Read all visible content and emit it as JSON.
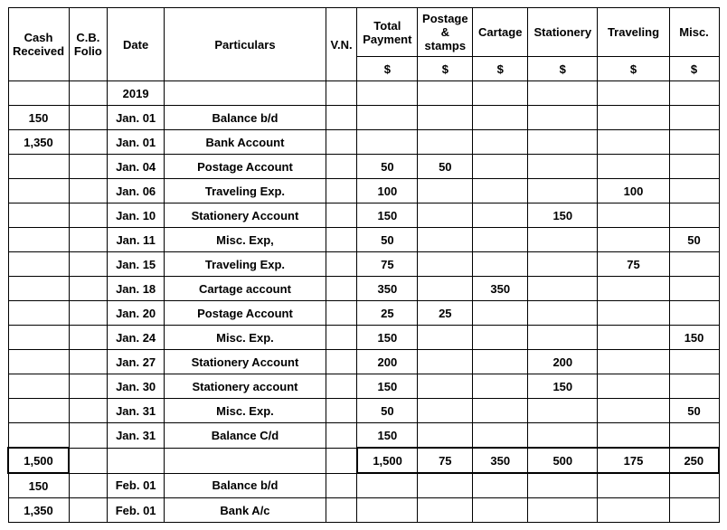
{
  "header": {
    "cash_received": "Cash Received",
    "cb_folio": "C.B. Folio",
    "date": "Date",
    "particulars": "Particulars",
    "vn": "V.N.",
    "total_payment": "Total Payment",
    "postage": "Postage & stamps",
    "cartage": "Cartage",
    "stationery": "Stationery",
    "traveling": "Traveling",
    "misc": "Misc.",
    "currency": "$"
  },
  "year_row": {
    "date": "2019"
  },
  "rows": [
    {
      "cash": "150",
      "date": "Jan. 01",
      "part": "Balance b/d"
    },
    {
      "cash": "1,350",
      "date": "Jan. 01",
      "part": "Bank Account"
    },
    {
      "date": "Jan. 04",
      "part": "Postage Account",
      "total": "50",
      "postage": "50"
    },
    {
      "date": "Jan. 06",
      "part": "Traveling Exp.",
      "total": "100",
      "traveling": "100"
    },
    {
      "date": "Jan. 10",
      "part": "Stationery Account",
      "total": "150",
      "stationery": "150"
    },
    {
      "date": "Jan. 11",
      "part": "Misc. Exp,",
      "total": "50",
      "misc": "50"
    },
    {
      "date": "Jan. 15",
      "part": "Traveling Exp.",
      "total": "75",
      "traveling": "75"
    },
    {
      "date": "Jan. 18",
      "part": "Cartage account",
      "total": "350",
      "cartage": "350"
    },
    {
      "date": "Jan. 20",
      "part": "Postage Account",
      "total": "25",
      "postage": "25"
    },
    {
      "date": "Jan. 24",
      "part": "Misc. Exp.",
      "total": "150",
      "misc": "150"
    },
    {
      "date": "Jan. 27",
      "part": "Stationery Account",
      "total": "200",
      "stationery": "200"
    },
    {
      "date": "Jan. 30",
      "part": "Stationery account",
      "total": "150",
      "stationery": "150"
    },
    {
      "date": "Jan. 31",
      "part": "Misc. Exp.",
      "total": "50",
      "misc": "50"
    },
    {
      "date": "Jan. 31",
      "part": "Balance C/d",
      "total": "150"
    }
  ],
  "totals": {
    "cash": "1,500",
    "total": "1,500",
    "postage": "75",
    "cartage": "350",
    "stationery": "500",
    "traveling": "175",
    "misc": "250"
  },
  "after": [
    {
      "cash": "150",
      "date": "Feb. 01",
      "part": "Balance b/d"
    },
    {
      "cash": "1,350",
      "date": "Feb. 01",
      "part": "Bank A/c"
    }
  ],
  "style": {
    "border_color": "#000000",
    "background": "#ffffff",
    "font_family": "Verdana",
    "header_fontsize": 13,
    "body_fontsize": 13
  }
}
